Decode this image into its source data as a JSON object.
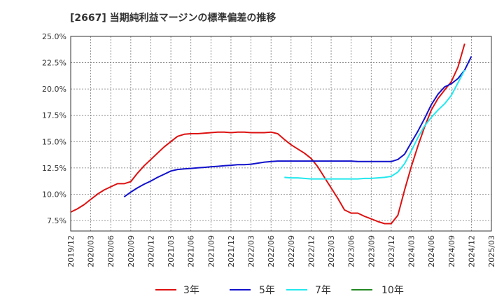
{
  "chart_data": {
    "type": "line",
    "title": "[2667]  当期純利益マージンの標準偏差の推移",
    "xlabel": "",
    "ylabel": "",
    "ylim": [
      6.5,
      25.0
    ],
    "xlim": [
      "2019-12",
      "2025-03"
    ],
    "y_ticks": [
      7.5,
      10.0,
      12.5,
      15.0,
      17.5,
      20.0,
      22.5,
      25.0
    ],
    "y_tick_labels": [
      "7.5%",
      "10.0%",
      "12.5%",
      "15.0%",
      "17.5%",
      "20.0%",
      "22.5%",
      "25.0%"
    ],
    "x_tick_labels": [
      "2019/12",
      "2020/03",
      "2020/06",
      "2020/09",
      "2020/12",
      "2021/03",
      "2021/06",
      "2021/09",
      "2021/12",
      "2022/03",
      "2022/06",
      "2022/09",
      "2022/12",
      "2023/03",
      "2023/06",
      "2023/09",
      "2023/12",
      "2024/03",
      "2024/06",
      "2024/09",
      "2024/12",
      "2025/03"
    ],
    "grid": true,
    "legend_position": "bottom",
    "series": [
      {
        "name": "3年",
        "color": "#dd1111",
        "points": [
          [
            "2019-12",
            8.3
          ],
          [
            "2020-01",
            8.6
          ],
          [
            "2020-02",
            9.0
          ],
          [
            "2020-03",
            9.5
          ],
          [
            "2020-04",
            10.0
          ],
          [
            "2020-05",
            10.4
          ],
          [
            "2020-06",
            10.7
          ],
          [
            "2020-07",
            11.0
          ],
          [
            "2020-08",
            11.0
          ],
          [
            "2020-09",
            11.2
          ],
          [
            "2020-10",
            12.0
          ],
          [
            "2020-11",
            12.7
          ],
          [
            "2020-12",
            13.3
          ],
          [
            "2021-01",
            13.9
          ],
          [
            "2021-02",
            14.5
          ],
          [
            "2021-03",
            15.0
          ],
          [
            "2021-04",
            15.5
          ],
          [
            "2021-05",
            15.7
          ],
          [
            "2021-06",
            15.75
          ],
          [
            "2021-07",
            15.75
          ],
          [
            "2021-08",
            15.8
          ],
          [
            "2021-09",
            15.85
          ],
          [
            "2021-10",
            15.9
          ],
          [
            "2021-11",
            15.9
          ],
          [
            "2021-12",
            15.85
          ],
          [
            "2022-01",
            15.9
          ],
          [
            "2022-02",
            15.9
          ],
          [
            "2022-03",
            15.85
          ],
          [
            "2022-04",
            15.85
          ],
          [
            "2022-05",
            15.85
          ],
          [
            "2022-06",
            15.9
          ],
          [
            "2022-07",
            15.75
          ],
          [
            "2022-08",
            15.2
          ],
          [
            "2022-09",
            14.7
          ],
          [
            "2022-10",
            14.3
          ],
          [
            "2022-11",
            13.9
          ],
          [
            "2022-12",
            13.4
          ],
          [
            "2023-01",
            12.6
          ],
          [
            "2023-02",
            11.6
          ],
          [
            "2023-03",
            10.6
          ],
          [
            "2023-04",
            9.6
          ],
          [
            "2023-05",
            8.5
          ],
          [
            "2023-06",
            8.2
          ],
          [
            "2023-07",
            8.2
          ],
          [
            "2023-08",
            7.9
          ],
          [
            "2023-09",
            7.65
          ],
          [
            "2023-10",
            7.4
          ],
          [
            "2023-11",
            7.2
          ],
          [
            "2023-12",
            7.2
          ],
          [
            "2024-01",
            8.0
          ],
          [
            "2024-02",
            10.4
          ],
          [
            "2024-03",
            12.6
          ],
          [
            "2024-04",
            14.6
          ],
          [
            "2024-05",
            16.4
          ],
          [
            "2024-06",
            18.0
          ],
          [
            "2024-07",
            19.1
          ],
          [
            "2024-08",
            19.9
          ],
          [
            "2024-09",
            20.7
          ],
          [
            "2024-10",
            22.1
          ],
          [
            "2024-11",
            24.3
          ]
        ]
      },
      {
        "name": "5年",
        "color": "#1111cc",
        "points": [
          [
            "2020-08",
            9.75
          ],
          [
            "2020-09",
            10.2
          ],
          [
            "2020-10",
            10.6
          ],
          [
            "2020-11",
            10.95
          ],
          [
            "2020-12",
            11.25
          ],
          [
            "2021-01",
            11.6
          ],
          [
            "2021-02",
            11.9
          ],
          [
            "2021-03",
            12.2
          ],
          [
            "2021-04",
            12.35
          ],
          [
            "2021-05",
            12.4
          ],
          [
            "2021-06",
            12.45
          ],
          [
            "2021-07",
            12.5
          ],
          [
            "2021-08",
            12.55
          ],
          [
            "2021-09",
            12.6
          ],
          [
            "2021-10",
            12.65
          ],
          [
            "2021-11",
            12.7
          ],
          [
            "2021-12",
            12.75
          ],
          [
            "2022-01",
            12.8
          ],
          [
            "2022-02",
            12.8
          ],
          [
            "2022-03",
            12.85
          ],
          [
            "2022-04",
            12.95
          ],
          [
            "2022-05",
            13.05
          ],
          [
            "2022-06",
            13.1
          ],
          [
            "2022-07",
            13.15
          ],
          [
            "2022-08",
            13.15
          ],
          [
            "2022-09",
            13.15
          ],
          [
            "2022-10",
            13.15
          ],
          [
            "2022-11",
            13.15
          ],
          [
            "2022-12",
            13.15
          ],
          [
            "2023-01",
            13.15
          ],
          [
            "2023-02",
            13.15
          ],
          [
            "2023-03",
            13.15
          ],
          [
            "2023-04",
            13.15
          ],
          [
            "2023-05",
            13.15
          ],
          [
            "2023-06",
            13.15
          ],
          [
            "2023-07",
            13.1
          ],
          [
            "2023-08",
            13.1
          ],
          [
            "2023-09",
            13.1
          ],
          [
            "2023-10",
            13.1
          ],
          [
            "2023-11",
            13.1
          ],
          [
            "2023-12",
            13.1
          ],
          [
            "2024-01",
            13.3
          ],
          [
            "2024-02",
            13.8
          ],
          [
            "2024-03",
            14.9
          ],
          [
            "2024-04",
            16.0
          ],
          [
            "2024-05",
            17.2
          ],
          [
            "2024-06",
            18.5
          ],
          [
            "2024-07",
            19.5
          ],
          [
            "2024-08",
            20.2
          ],
          [
            "2024-09",
            20.5
          ],
          [
            "2024-10",
            21.0
          ],
          [
            "2024-11",
            21.8
          ],
          [
            "2024-12",
            23.1
          ]
        ]
      },
      {
        "name": "7年",
        "color": "#22e8ee",
        "points": [
          [
            "2022-08",
            11.6
          ],
          [
            "2022-09",
            11.55
          ],
          [
            "2022-10",
            11.55
          ],
          [
            "2022-11",
            11.5
          ],
          [
            "2022-12",
            11.45
          ],
          [
            "2023-01",
            11.45
          ],
          [
            "2023-02",
            11.45
          ],
          [
            "2023-03",
            11.45
          ],
          [
            "2023-04",
            11.45
          ],
          [
            "2023-05",
            11.45
          ],
          [
            "2023-06",
            11.45
          ],
          [
            "2023-07",
            11.45
          ],
          [
            "2023-08",
            11.5
          ],
          [
            "2023-09",
            11.5
          ],
          [
            "2023-10",
            11.55
          ],
          [
            "2023-11",
            11.6
          ],
          [
            "2023-12",
            11.7
          ],
          [
            "2024-01",
            12.1
          ],
          [
            "2024-02",
            12.9
          ],
          [
            "2024-03",
            14.1
          ],
          [
            "2024-04",
            15.4
          ],
          [
            "2024-05",
            16.5
          ],
          [
            "2024-06",
            17.3
          ],
          [
            "2024-07",
            18.0
          ],
          [
            "2024-08",
            18.6
          ],
          [
            "2024-09",
            19.4
          ],
          [
            "2024-10",
            20.6
          ],
          [
            "2024-11",
            21.8
          ]
        ]
      },
      {
        "name": "10年",
        "color": "#228822",
        "points": []
      }
    ]
  }
}
